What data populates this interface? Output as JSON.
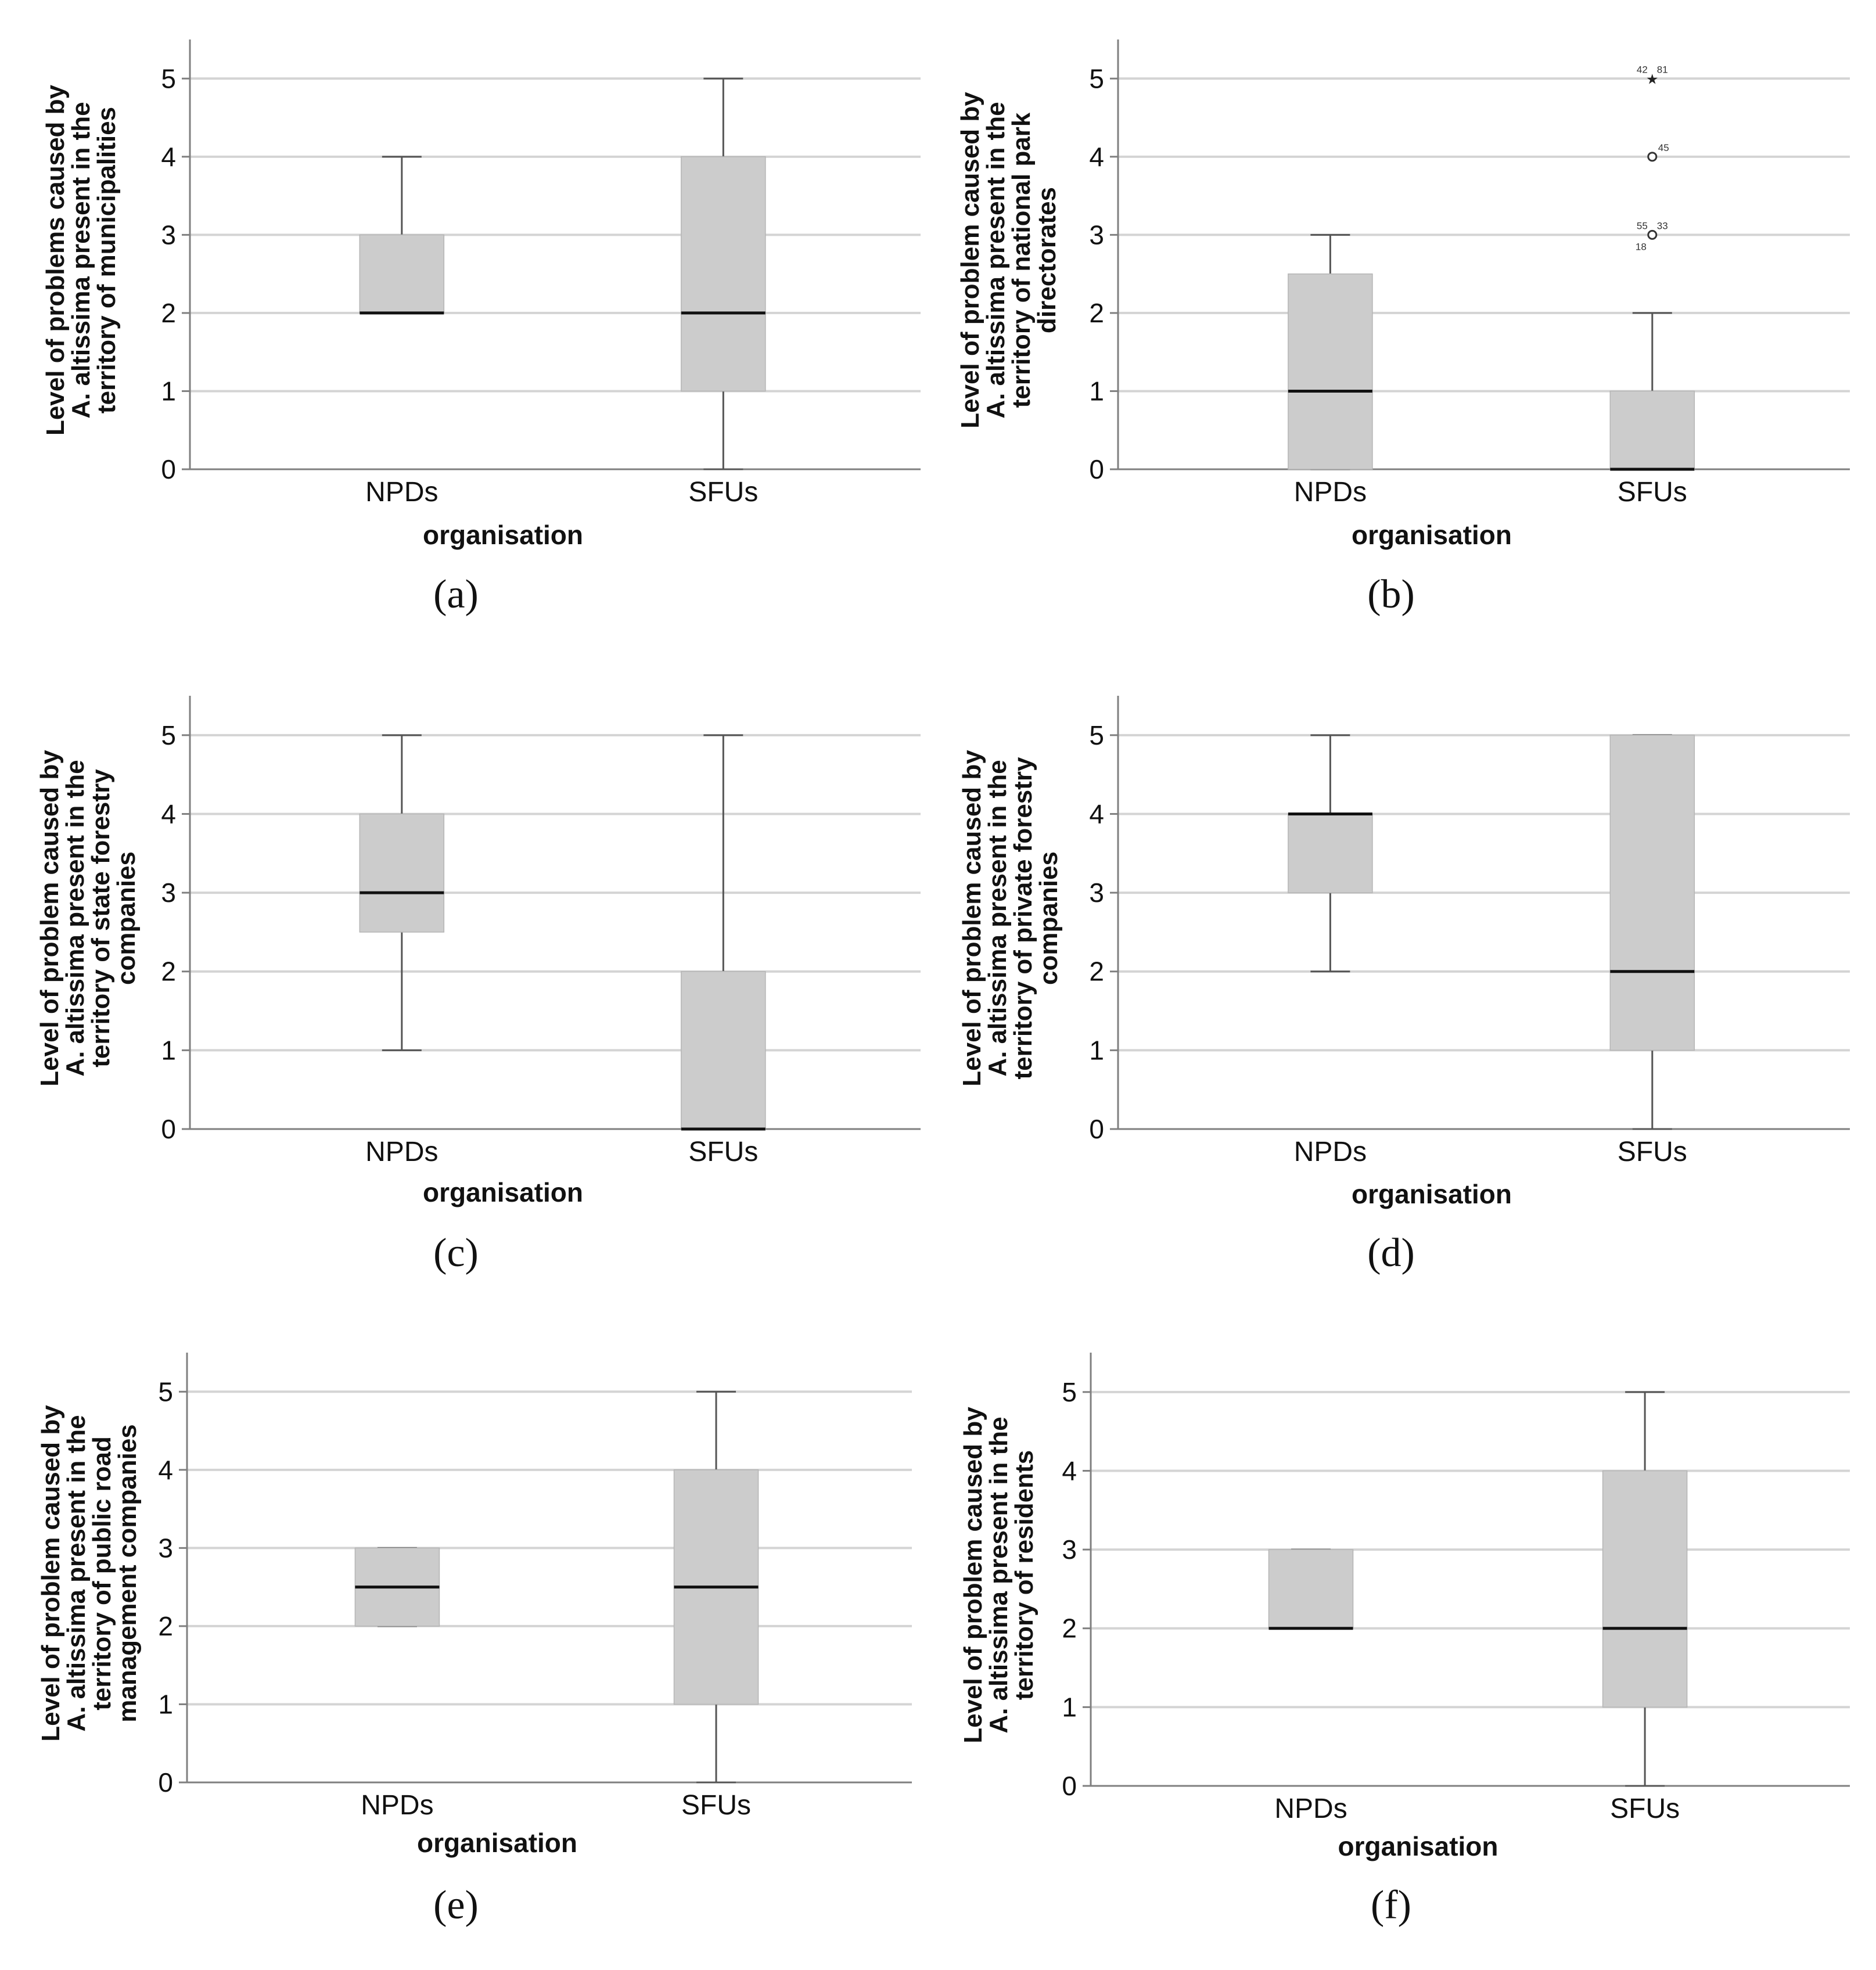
{
  "figure": {
    "panels": [
      {
        "caption": "(a)"
      },
      {
        "caption": "(b)"
      },
      {
        "caption": "(c)"
      },
      {
        "caption": "(d)"
      },
      {
        "caption": "(e)"
      },
      {
        "caption": "(f)"
      }
    ]
  },
  "chart_data": [
    {
      "type": "boxplot",
      "caption": "(a)",
      "xlabel": "organisation",
      "ylabel_lines": [
        "Level of problems caused by",
        "A. altissima present in the",
        "territory of municipalities"
      ],
      "ylim": [
        0,
        5.5
      ],
      "yticks": [
        0,
        1,
        2,
        3,
        4,
        5
      ],
      "grid": true,
      "categories": [
        "NPDs",
        "SFUs"
      ],
      "boxes": [
        {
          "min": 2,
          "q1": 2,
          "median": 2,
          "q3": 3,
          "max": 4,
          "outliers": []
        },
        {
          "min": 0,
          "q1": 1,
          "median": 2,
          "q3": 4,
          "max": 5,
          "outliers": []
        }
      ]
    },
    {
      "type": "boxplot",
      "caption": "(b)",
      "xlabel": "organisation",
      "ylabel_lines": [
        "Level of problem caused by",
        "A. altissima present in the",
        "territory of national park",
        "directorates"
      ],
      "ylim": [
        0,
        5.5
      ],
      "yticks": [
        0,
        1,
        2,
        3,
        4,
        5
      ],
      "grid": true,
      "categories": [
        "NPDs",
        "SFUs"
      ],
      "boxes": [
        {
          "min": 0,
          "q1": 0,
          "median": 1,
          "q3": 2.5,
          "max": 3,
          "outliers": []
        },
        {
          "min": 0,
          "q1": 0,
          "median": 0,
          "q3": 1,
          "max": 2,
          "outliers": [
            {
              "value": 5,
              "marker": "star",
              "labels": [
                "42",
                "81"
              ]
            },
            {
              "value": 4,
              "marker": "circle",
              "labels": [
                "45"
              ]
            },
            {
              "value": 3,
              "marker": "circle",
              "labels": [
                "55",
                "33",
                "18"
              ]
            }
          ]
        }
      ]
    },
    {
      "type": "boxplot",
      "caption": "(c)",
      "xlabel": "organisation",
      "ylabel_lines": [
        "Level of problem caused by",
        "A. altissima present in the",
        "territory of state forestry",
        "companies"
      ],
      "ylim": [
        0,
        5.5
      ],
      "yticks": [
        0,
        1,
        2,
        3,
        4,
        5
      ],
      "grid": true,
      "categories": [
        "NPDs",
        "SFUs"
      ],
      "boxes": [
        {
          "min": 1,
          "q1": 2.5,
          "median": 3,
          "q3": 4,
          "max": 5,
          "outliers": []
        },
        {
          "min": 0,
          "q1": 0,
          "median": 0,
          "q3": 2,
          "max": 5,
          "outliers": []
        }
      ]
    },
    {
      "type": "boxplot",
      "caption": "(d)",
      "xlabel": "organisation",
      "ylabel_lines": [
        "Level of problem caused by",
        "A. altissima present in the",
        "territory of private forestry",
        "companies"
      ],
      "ylim": [
        0,
        5.5
      ],
      "yticks": [
        0,
        1,
        2,
        3,
        4,
        5
      ],
      "grid": true,
      "categories": [
        "NPDs",
        "SFUs"
      ],
      "boxes": [
        {
          "min": 2,
          "q1": 3,
          "median": 4,
          "q3": 4,
          "max": 5,
          "outliers": []
        },
        {
          "min": 0,
          "q1": 1,
          "median": 2,
          "q3": 5,
          "max": 5,
          "outliers": []
        }
      ]
    },
    {
      "type": "boxplot",
      "caption": "(e)",
      "xlabel": "organisation",
      "ylabel_lines": [
        "Level of problem caused by",
        "A. altissima present in the",
        "territory of public road",
        "management companies"
      ],
      "ylim": [
        0,
        5.5
      ],
      "yticks": [
        0,
        1,
        2,
        3,
        4,
        5
      ],
      "grid": true,
      "categories": [
        "NPDs",
        "SFUs"
      ],
      "boxes": [
        {
          "min": 2,
          "q1": 2,
          "median": 2.5,
          "q3": 3,
          "max": 3,
          "outliers": []
        },
        {
          "min": 0,
          "q1": 1,
          "median": 2.5,
          "q3": 4,
          "max": 5,
          "outliers": []
        }
      ]
    },
    {
      "type": "boxplot",
      "caption": "(f)",
      "xlabel": "organisation",
      "ylabel_lines": [
        "Level of problem caused by",
        "A. altissima present in the",
        "territory of residents"
      ],
      "ylim": [
        0,
        5.5
      ],
      "yticks": [
        0,
        1,
        2,
        3,
        4,
        5
      ],
      "grid": true,
      "categories": [
        "NPDs",
        "SFUs"
      ],
      "boxes": [
        {
          "min": 2,
          "q1": 2,
          "median": 2,
          "q3": 3,
          "max": 3,
          "outliers": []
        },
        {
          "min": 0,
          "q1": 1,
          "median": 2,
          "q3": 4,
          "max": 5,
          "outliers": []
        }
      ]
    }
  ],
  "colors": {
    "box_fill": "#cccccc",
    "grid": "#d4d4d4",
    "axis": "#7f7f7f",
    "whisker": "#555555",
    "median": "#111111"
  }
}
